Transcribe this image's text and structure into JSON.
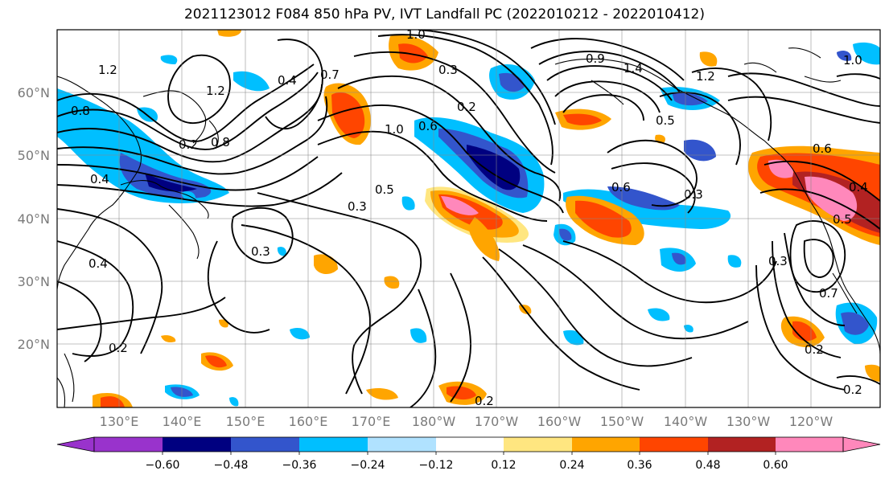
{
  "title": "2021123012 F084 850 hPa PV, IVT Landfall PC (2022010212 - 2022010412)",
  "map": {
    "lon_labels": [
      "130°E",
      "140°E",
      "150°E",
      "160°E",
      "170°E",
      "180°W",
      "170°W",
      "160°W",
      "150°W",
      "140°W",
      "130°W",
      "120°W"
    ],
    "lat_labels": [
      "60°N",
      "50°N",
      "40°N",
      "30°N",
      "20°N"
    ],
    "grid": true,
    "contour_labels": [
      "1.2",
      "1.2",
      "0.8",
      "0.2",
      "0.8",
      "0.4",
      "0.4",
      "0.4",
      "0.7",
      "1.0",
      "1.0",
      "0.3",
      "0.3",
      "0.2",
      "0.6",
      "0.5",
      "0.3",
      "1.4",
      "0.9",
      "1.2",
      "0.5",
      "0.6",
      "0.3",
      "0.6",
      "0.5",
      "0.4",
      "0.7",
      "0.2",
      "0.2",
      "0.2",
      "0.2",
      "1.0",
      "0.3"
    ]
  },
  "colorbar": {
    "tick_labels": [
      "−0.60",
      "−0.48",
      "−0.36",
      "−0.24",
      "−0.12",
      "0.12",
      "0.24",
      "0.36",
      "0.48",
      "0.60"
    ],
    "colors": [
      "#9933cc",
      "#000080",
      "#3355cc",
      "#00bfff",
      "#b0e2ff",
      "#ffffff",
      "#ffe680",
      "#ffa500",
      "#ff4500",
      "#b22222",
      "#ff88bb"
    ]
  }
}
